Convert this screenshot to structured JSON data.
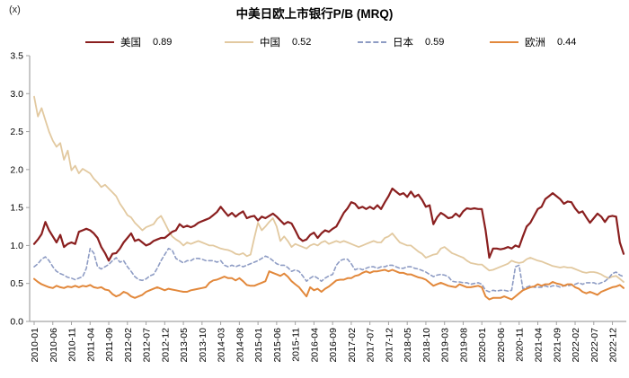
{
  "unit_label": "(x)",
  "title": "中美日欧上市银行P/B (MRQ)",
  "colors": {
    "us": "#8a1f1f",
    "china": "#e2c9a0",
    "japan": "#8e9cc4",
    "europe": "#e2883b",
    "axis": "#a3a3a3",
    "text": "#000000"
  },
  "legend": [
    {
      "id": "us",
      "label": "美国",
      "value": "0.89",
      "swatch_css": "border-top:2.5px solid #8a1f1f"
    },
    {
      "id": "china",
      "label": "中国",
      "value": "0.52",
      "swatch_css": "border-top:2px solid #e2c9a0"
    },
    {
      "id": "japan",
      "label": "日本",
      "value": "0.59",
      "swatch_css": "border-top:2px dashed #8e9cc4"
    },
    {
      "id": "europe",
      "label": "欧洲",
      "value": "0.44",
      "swatch_css": "border-top:2px solid #e2883b"
    }
  ],
  "chart_data": {
    "type": "line",
    "title": "中美日欧上市银行P/B (MRQ)",
    "unit": "(x)",
    "x_frequency": "monthly",
    "x_start": "2010-01",
    "x_end": "2023-03",
    "ylim": [
      0,
      3.5
    ],
    "y_ticks": [
      0.0,
      0.5,
      1.0,
      1.5,
      2.0,
      2.5,
      3.0,
      3.5
    ],
    "grid": false,
    "legend_position": "top",
    "x_tick_every": 5,
    "x_tick_labels": [
      "2010-01",
      "2010-06",
      "2010-11",
      "2011-04",
      "2011-09",
      "2012-02",
      "2012-07",
      "2012-12",
      "2013-05",
      "2013-10",
      "2014-03",
      "2014-08",
      "2015-01",
      "2015-06",
      "2015-11",
      "2016-04",
      "2016-09",
      "2017-02",
      "2017-07",
      "2017-12",
      "2018-05",
      "2018-10",
      "2019-03",
      "2019-08",
      "2020-01",
      "2020-06",
      "2020-11",
      "2021-04",
      "2021-09",
      "2022-02",
      "2022-07",
      "2022-12"
    ],
    "series": [
      {
        "id": "us",
        "name": "美国",
        "latest": 0.89,
        "dash": false,
        "width": 2.2,
        "color": "#8a1f1f",
        "values": [
          1.02,
          1.08,
          1.15,
          1.31,
          1.2,
          1.12,
          1.04,
          1.14,
          0.98,
          1.02,
          1.04,
          1.02,
          1.18,
          1.2,
          1.22,
          1.2,
          1.16,
          1.1,
          0.98,
          0.9,
          0.8,
          0.89,
          0.9,
          0.96,
          1.04,
          1.1,
          1.16,
          1.06,
          1.08,
          1.04,
          1.0,
          1.02,
          1.06,
          1.08,
          1.1,
          1.1,
          1.14,
          1.18,
          1.2,
          1.28,
          1.24,
          1.26,
          1.24,
          1.26,
          1.3,
          1.32,
          1.34,
          1.36,
          1.4,
          1.44,
          1.51,
          1.45,
          1.39,
          1.43,
          1.38,
          1.42,
          1.45,
          1.36,
          1.38,
          1.39,
          1.33,
          1.38,
          1.36,
          1.39,
          1.42,
          1.38,
          1.33,
          1.28,
          1.31,
          1.29,
          1.2,
          1.1,
          1.06,
          1.08,
          1.14,
          1.17,
          1.1,
          1.16,
          1.2,
          1.18,
          1.22,
          1.25,
          1.34,
          1.43,
          1.49,
          1.57,
          1.55,
          1.49,
          1.51,
          1.48,
          1.51,
          1.48,
          1.53,
          1.48,
          1.57,
          1.65,
          1.75,
          1.71,
          1.67,
          1.69,
          1.64,
          1.71,
          1.64,
          1.67,
          1.6,
          1.51,
          1.53,
          1.28,
          1.37,
          1.43,
          1.4,
          1.36,
          1.37,
          1.42,
          1.38,
          1.45,
          1.49,
          1.48,
          1.49,
          1.48,
          1.48,
          1.2,
          0.84,
          0.96,
          0.96,
          0.95,
          0.96,
          0.98,
          0.96,
          1.0,
          0.98,
          1.12,
          1.25,
          1.3,
          1.39,
          1.48,
          1.51,
          1.61,
          1.65,
          1.69,
          1.65,
          1.61,
          1.55,
          1.58,
          1.57,
          1.49,
          1.43,
          1.45,
          1.37,
          1.3,
          1.36,
          1.42,
          1.38,
          1.31,
          1.38,
          1.39,
          1.38,
          1.04,
          0.89
        ]
      },
      {
        "id": "china",
        "name": "中国",
        "latest": 0.52,
        "dash": false,
        "width": 1.8,
        "color": "#e2c9a0",
        "values": [
          2.96,
          2.7,
          2.81,
          2.65,
          2.5,
          2.38,
          2.3,
          2.35,
          2.13,
          2.25,
          1.99,
          2.05,
          1.95,
          2.01,
          1.98,
          1.95,
          1.88,
          1.83,
          1.77,
          1.8,
          1.75,
          1.7,
          1.65,
          1.55,
          1.48,
          1.4,
          1.37,
          1.3,
          1.25,
          1.2,
          1.24,
          1.26,
          1.28,
          1.35,
          1.39,
          1.3,
          1.2,
          1.12,
          1.08,
          1.05,
          1.0,
          1.04,
          1.02,
          1.04,
          1.06,
          1.04,
          1.02,
          1.0,
          1.0,
          0.98,
          0.96,
          0.95,
          0.94,
          0.92,
          0.89,
          0.88,
          0.9,
          0.86,
          0.88,
          1.1,
          1.3,
          1.2,
          1.25,
          1.31,
          1.36,
          1.25,
          1.06,
          1.12,
          1.06,
          0.98,
          1.02,
          1.0,
          0.98,
          0.96,
          1.0,
          1.02,
          1.0,
          1.04,
          1.06,
          1.02,
          1.04,
          1.06,
          1.04,
          1.06,
          1.04,
          1.02,
          1.0,
          0.98,
          1.0,
          1.02,
          1.04,
          1.06,
          1.04,
          1.04,
          1.1,
          1.12,
          1.16,
          1.1,
          1.04,
          1.02,
          1.0,
          1.0,
          0.96,
          0.92,
          0.89,
          0.84,
          0.86,
          0.88,
          0.89,
          0.96,
          0.98,
          0.94,
          0.9,
          0.88,
          0.86,
          0.84,
          0.8,
          0.77,
          0.76,
          0.75,
          0.75,
          0.71,
          0.67,
          0.68,
          0.7,
          0.72,
          0.74,
          0.76,
          0.8,
          0.78,
          0.77,
          0.78,
          0.82,
          0.84,
          0.82,
          0.8,
          0.79,
          0.77,
          0.75,
          0.73,
          0.72,
          0.71,
          0.72,
          0.71,
          0.71,
          0.69,
          0.67,
          0.65,
          0.64,
          0.65,
          0.65,
          0.64,
          0.62,
          0.59,
          0.57,
          0.59,
          0.6,
          0.56,
          0.52
        ]
      },
      {
        "id": "japan",
        "name": "日本",
        "latest": 0.59,
        "dash": true,
        "width": 1.6,
        "color": "#8e9cc4",
        "values": [
          0.72,
          0.76,
          0.82,
          0.85,
          0.8,
          0.72,
          0.66,
          0.63,
          0.61,
          0.58,
          0.57,
          0.55,
          0.57,
          0.59,
          0.7,
          0.96,
          0.9,
          0.72,
          0.69,
          0.72,
          0.75,
          0.8,
          0.84,
          0.78,
          0.8,
          0.72,
          0.66,
          0.59,
          0.55,
          0.54,
          0.56,
          0.6,
          0.62,
          0.7,
          0.8,
          0.88,
          0.96,
          0.94,
          0.83,
          0.8,
          0.77,
          0.8,
          0.8,
          0.83,
          0.83,
          0.82,
          0.8,
          0.8,
          0.8,
          0.78,
          0.8,
          0.74,
          0.72,
          0.74,
          0.72,
          0.74,
          0.72,
          0.74,
          0.76,
          0.78,
          0.8,
          0.83,
          0.86,
          0.84,
          0.8,
          0.76,
          0.74,
          0.74,
          0.71,
          0.66,
          0.68,
          0.66,
          0.6,
          0.53,
          0.57,
          0.6,
          0.57,
          0.53,
          0.57,
          0.6,
          0.62,
          0.74,
          0.8,
          0.82,
          0.82,
          0.76,
          0.68,
          0.7,
          0.68,
          0.7,
          0.72,
          0.72,
          0.7,
          0.72,
          0.72,
          0.74,
          0.74,
          0.72,
          0.7,
          0.7,
          0.72,
          0.72,
          0.7,
          0.69,
          0.67,
          0.65,
          0.62,
          0.59,
          0.61,
          0.62,
          0.61,
          0.59,
          0.53,
          0.52,
          0.52,
          0.51,
          0.51,
          0.49,
          0.5,
          0.51,
          0.49,
          0.41,
          0.39,
          0.41,
          0.4,
          0.41,
          0.41,
          0.4,
          0.41,
          0.72,
          0.74,
          0.43,
          0.45,
          0.47,
          0.45,
          0.45,
          0.45,
          0.47,
          0.45,
          0.47,
          0.47,
          0.45,
          0.47,
          0.47,
          0.48,
          0.49,
          0.51,
          0.49,
          0.51,
          0.51,
          0.51,
          0.49,
          0.51,
          0.53,
          0.57,
          0.63,
          0.65,
          0.61,
          0.59
        ]
      },
      {
        "id": "europe",
        "name": "欧洲",
        "latest": 0.44,
        "dash": false,
        "width": 2,
        "color": "#e2883b",
        "values": [
          0.56,
          0.52,
          0.49,
          0.47,
          0.45,
          0.44,
          0.47,
          0.45,
          0.44,
          0.46,
          0.45,
          0.47,
          0.45,
          0.47,
          0.46,
          0.48,
          0.45,
          0.44,
          0.45,
          0.42,
          0.41,
          0.36,
          0.33,
          0.35,
          0.39,
          0.37,
          0.33,
          0.31,
          0.33,
          0.35,
          0.39,
          0.41,
          0.43,
          0.45,
          0.43,
          0.41,
          0.43,
          0.42,
          0.41,
          0.4,
          0.39,
          0.39,
          0.41,
          0.42,
          0.43,
          0.44,
          0.45,
          0.51,
          0.54,
          0.55,
          0.57,
          0.59,
          0.57,
          0.57,
          0.54,
          0.57,
          0.53,
          0.48,
          0.47,
          0.47,
          0.49,
          0.51,
          0.53,
          0.66,
          0.64,
          0.62,
          0.6,
          0.63,
          0.59,
          0.53,
          0.49,
          0.45,
          0.39,
          0.33,
          0.45,
          0.41,
          0.43,
          0.39,
          0.43,
          0.46,
          0.5,
          0.54,
          0.55,
          0.55,
          0.57,
          0.57,
          0.6,
          0.61,
          0.64,
          0.66,
          0.64,
          0.66,
          0.66,
          0.67,
          0.68,
          0.66,
          0.68,
          0.66,
          0.64,
          0.64,
          0.62,
          0.62,
          0.6,
          0.58,
          0.57,
          0.55,
          0.51,
          0.47,
          0.49,
          0.51,
          0.49,
          0.47,
          0.46,
          0.45,
          0.49,
          0.47,
          0.45,
          0.45,
          0.46,
          0.47,
          0.45,
          0.33,
          0.29,
          0.31,
          0.31,
          0.31,
          0.33,
          0.31,
          0.29,
          0.33,
          0.37,
          0.41,
          0.43,
          0.45,
          0.46,
          0.49,
          0.47,
          0.49,
          0.49,
          0.52,
          0.5,
          0.49,
          0.47,
          0.49,
          0.49,
          0.45,
          0.43,
          0.39,
          0.37,
          0.39,
          0.37,
          0.35,
          0.39,
          0.41,
          0.43,
          0.45,
          0.46,
          0.48,
          0.44
        ]
      }
    ]
  }
}
